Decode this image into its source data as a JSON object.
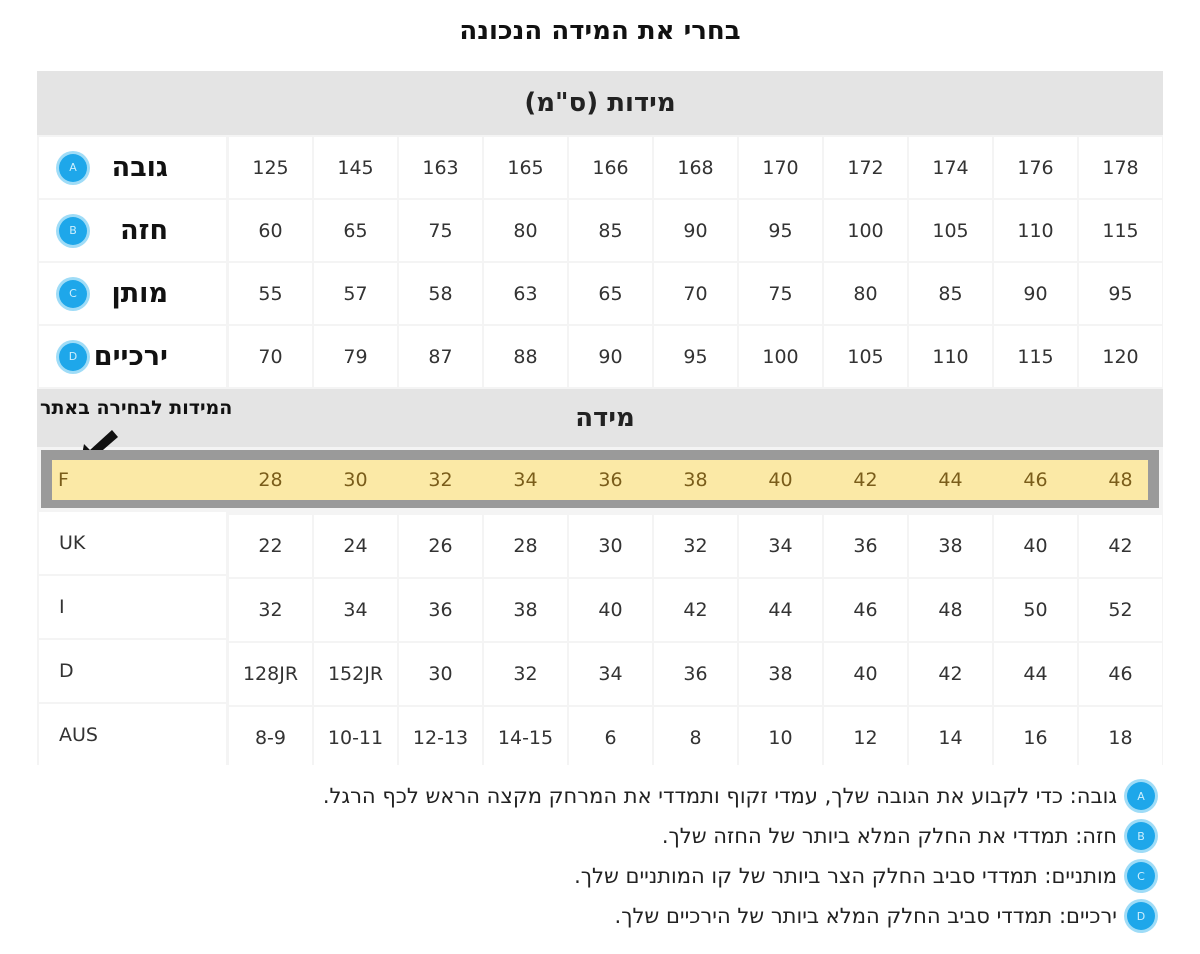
{
  "title": "בחרי את המידה הנכונה",
  "measurements": {
    "title": "מידות (ס\"מ)",
    "rows": [
      {
        "label": "גובה",
        "badge": "A",
        "values": [
          "125",
          "145",
          "163",
          "165",
          "166",
          "168",
          "170",
          "172",
          "174",
          "176",
          "178"
        ]
      },
      {
        "label": "חזה",
        "badge": "B",
        "values": [
          "60",
          "65",
          "75",
          "80",
          "85",
          "90",
          "95",
          "100",
          "105",
          "110",
          "115"
        ]
      },
      {
        "label": "מותן",
        "badge": "C",
        "values": [
          "55",
          "57",
          "58",
          "63",
          "65",
          "70",
          "75",
          "80",
          "85",
          "90",
          "95"
        ]
      },
      {
        "label": "ירכיים",
        "badge": "D",
        "values": [
          "70",
          "79",
          "87",
          "88",
          "90",
          "95",
          "100",
          "105",
          "110",
          "115",
          "120"
        ]
      }
    ]
  },
  "sizes": {
    "title": "מידה",
    "callout": "המידות לבחירה באתר",
    "highlight": {
      "label": "F",
      "values": [
        "28",
        "30",
        "32",
        "34",
        "36",
        "38",
        "40",
        "42",
        "44",
        "46",
        "48"
      ]
    },
    "rows": [
      {
        "label": "UK",
        "values": [
          "22",
          "24",
          "26",
          "28",
          "30",
          "32",
          "34",
          "36",
          "38",
          "40",
          "42"
        ]
      },
      {
        "label": "I",
        "values": [
          "32",
          "34",
          "36",
          "38",
          "40",
          "42",
          "44",
          "46",
          "48",
          "50",
          "52"
        ]
      },
      {
        "label": "D",
        "values": [
          "128JR",
          "152JR",
          "30",
          "32",
          "34",
          "36",
          "38",
          "40",
          "42",
          "44",
          "46"
        ]
      },
      {
        "label": "AUS",
        "values": [
          "8-9",
          "10-11",
          "12-13",
          "14-15",
          "6",
          "8",
          "10",
          "12",
          "14",
          "16",
          "18"
        ]
      }
    ]
  },
  "notes": [
    {
      "badge": "A",
      "text": "גובה: כדי לקבוע את הגובה שלך, עמדי זקוף ותמדדי את המרחק מקצה הראש לכף הרגל."
    },
    {
      "badge": "B",
      "text": "חזה: תמדדי את החלק המלא ביותר של החזה שלך."
    },
    {
      "badge": "C",
      "text": "מותניים: תמדדי סביב החלק הצר ביותר של קו המותניים שלך."
    },
    {
      "badge": "D",
      "text": "ירכיים: תמדדי סביב החלק המלא ביותר של הירכיים שלך."
    }
  ],
  "colors": {
    "badge": "#1ea7ea",
    "highlight": "#fbe9a6",
    "frame": "#9a9a9a"
  }
}
